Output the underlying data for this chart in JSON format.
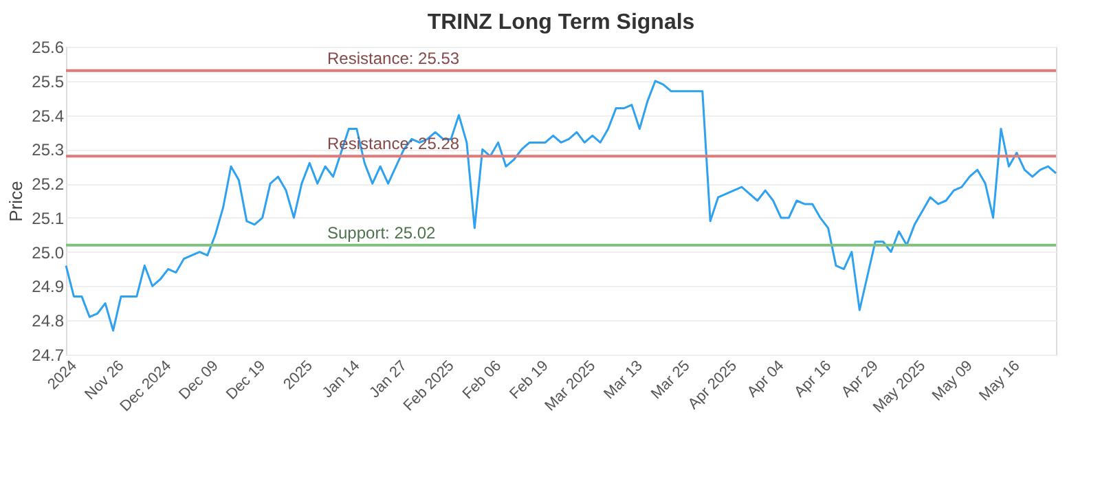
{
  "chart_data": {
    "type": "line",
    "title": "TRINZ Long Term Signals",
    "ylabel": "Price",
    "categories": [
      null,
      "2024",
      null,
      null,
      null,
      null,
      null,
      "Nov 26",
      null,
      null,
      null,
      null,
      null,
      "Dec 2024",
      null,
      null,
      null,
      null,
      null,
      "Dec 09",
      null,
      null,
      null,
      null,
      null,
      "Dec 19",
      null,
      null,
      null,
      null,
      null,
      "2025",
      null,
      null,
      null,
      null,
      null,
      "Jan 14",
      null,
      null,
      null,
      null,
      null,
      "Jan 27",
      null,
      null,
      null,
      null,
      null,
      "Feb 2025",
      null,
      null,
      null,
      null,
      null,
      "Feb 06",
      null,
      null,
      null,
      null,
      null,
      "Feb 19",
      null,
      null,
      null,
      null,
      null,
      "Mar 2025",
      null,
      null,
      null,
      null,
      null,
      "Mar 13",
      null,
      null,
      null,
      null,
      null,
      "Mar 25",
      null,
      null,
      null,
      null,
      null,
      "Apr 2025",
      null,
      null,
      null,
      null,
      null,
      "Apr 04",
      null,
      null,
      null,
      null,
      null,
      "Apr 16",
      null,
      null,
      null,
      null,
      null,
      "Apr 29",
      null,
      null,
      null,
      null,
      null,
      "May 2025",
      null,
      null,
      null,
      null,
      null,
      "May 09",
      null,
      null,
      null,
      null,
      null,
      "May 16",
      null,
      null,
      null,
      null,
      null
    ],
    "series": [
      {
        "color": "#2ea1f0",
        "values": [
          24.96,
          24.87,
          24.87,
          24.81,
          24.82,
          24.85,
          24.77,
          24.87,
          24.87,
          24.87,
          24.96,
          24.9,
          24.92,
          24.95,
          24.94,
          24.98,
          24.99,
          25.0,
          24.99,
          25.05,
          25.13,
          25.25,
          25.21,
          25.09,
          25.08,
          25.1,
          25.2,
          25.22,
          25.18,
          25.1,
          25.2,
          25.26,
          25.2,
          25.25,
          25.22,
          25.29,
          25.36,
          25.36,
          25.26,
          25.2,
          25.25,
          25.2,
          25.25,
          25.3,
          25.33,
          25.32,
          25.33,
          25.35,
          25.33,
          25.33,
          25.4,
          25.32,
          25.07,
          25.3,
          25.28,
          25.32,
          25.25,
          25.27,
          25.3,
          25.32,
          25.32,
          25.32,
          25.34,
          25.32,
          25.33,
          25.35,
          25.32,
          25.34,
          25.32,
          25.36,
          25.42,
          25.42,
          25.43,
          25.36,
          25.44,
          25.5,
          25.49,
          25.47,
          25.47,
          25.47,
          25.47,
          25.47,
          25.09,
          25.16,
          25.17,
          25.18,
          25.19,
          25.17,
          25.15,
          25.18,
          25.15,
          25.1,
          25.1,
          25.15,
          25.14,
          25.14,
          25.1,
          25.07,
          24.96,
          24.95,
          25.0,
          24.83,
          24.93,
          25.03,
          25.03,
          25.0,
          25.06,
          25.02,
          25.08,
          25.12,
          25.16,
          25.14,
          25.15,
          25.18,
          25.19,
          25.22,
          25.24,
          25.2,
          25.1,
          25.36,
          25.25,
          25.29,
          25.24,
          25.22,
          25.24,
          25.25,
          25.23
        ]
      }
    ],
    "ylim": [
      24.7,
      25.6
    ],
    "yticks": [
      24.7,
      24.8,
      24.9,
      {
        "value": 25.0,
        "label": "25.0"
      },
      25.1,
      25.2,
      25.3,
      25.4,
      25.5,
      25.6
    ],
    "ref_lines": [
      {
        "axis": "y",
        "value": 25.53,
        "label": "Resistance: 25.53",
        "color": "#e07a7a"
      },
      {
        "axis": "y",
        "value": 25.28,
        "label": "Resistance: 25.28",
        "color": "#e07a7a"
      },
      {
        "axis": "y",
        "value": 25.02,
        "label": "Support: 25.02",
        "color": "#7fbf7f"
      }
    ],
    "grid": "y",
    "marker": "none",
    "line_style": "solid"
  }
}
